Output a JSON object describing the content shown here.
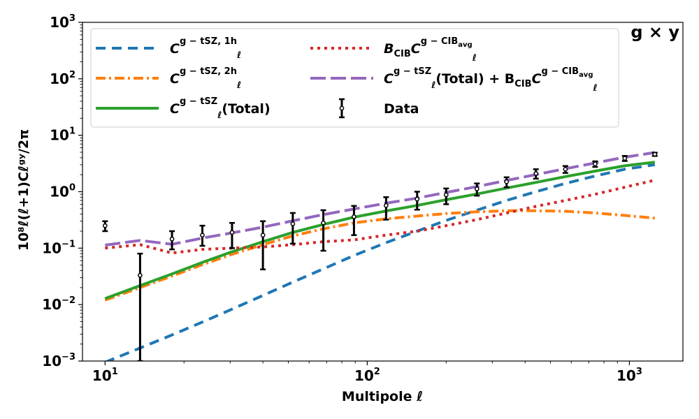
{
  "chart_data": {
    "type": "line",
    "xscale": "log",
    "yscale": "log",
    "xlim": [
      8.2,
      1600
    ],
    "ylim": [
      0.001,
      1000
    ],
    "xlabel": "Multipole ℓ",
    "ylabel": "10⁸ℓ(ℓ+1)Cℓᵍʸ/2π",
    "annotation": "g × y",
    "x_ticks": [
      {
        "value": 10,
        "base": "10",
        "exp": "1"
      },
      {
        "value": 100,
        "base": "10",
        "exp": "2"
      },
      {
        "value": 1000,
        "base": "10",
        "exp": "3"
      }
    ],
    "y_ticks": [
      {
        "value": 0.001,
        "base": "10",
        "exp": "−3"
      },
      {
        "value": 0.01,
        "base": "10",
        "exp": "−2"
      },
      {
        "value": 0.1,
        "base": "10",
        "exp": "−1"
      },
      {
        "value": 1,
        "base": "10",
        "exp": "0"
      },
      {
        "value": 10,
        "base": "10",
        "exp": "1"
      },
      {
        "value": 100,
        "base": "10",
        "exp": "2"
      },
      {
        "value": 1000,
        "base": "10",
        "exp": "3"
      }
    ],
    "x": [
      10,
      13.6,
      18,
      23.5,
      30.5,
      40,
      52,
      68,
      89,
      118,
      155,
      200,
      262,
      340,
      440,
      570,
      740,
      960,
      1250
    ],
    "series": [
      {
        "name": "Cℓ^{g−tSZ, 1h}",
        "color": "#1f77b4",
        "dash": "14,9",
        "width": 4,
        "values": [
          0.00095,
          0.0017,
          0.0029,
          0.0049,
          0.0083,
          0.0145,
          0.025,
          0.043,
          0.074,
          0.125,
          0.2,
          0.31,
          0.47,
          0.7,
          1.0,
          1.4,
          1.9,
          2.5,
          3.0
        ]
      },
      {
        "name": "Cℓ^{g−tSZ, 2h}",
        "color": "#ff7f0e",
        "dash": "14,5,3,5",
        "width": 4,
        "values": [
          0.012,
          0.02,
          0.032,
          0.051,
          0.078,
          0.115,
          0.165,
          0.22,
          0.28,
          0.33,
          0.37,
          0.41,
          0.44,
          0.46,
          0.46,
          0.45,
          0.42,
          0.38,
          0.34
        ]
      },
      {
        "name": "Cℓ^{g−tSZ}(Total)",
        "color": "#2ca02c",
        "dash": "",
        "width": 4,
        "values": [
          0.0128,
          0.0217,
          0.0349,
          0.0559,
          0.0863,
          0.13,
          0.19,
          0.263,
          0.354,
          0.455,
          0.57,
          0.72,
          0.91,
          1.16,
          1.46,
          1.85,
          2.32,
          2.88,
          3.34
        ]
      },
      {
        "name": "B_CIB Cℓ^{g−CIB_avg}",
        "color": "#d62728",
        "dash": "4,6",
        "width": 4,
        "values": [
          0.1,
          0.115,
          0.082,
          0.095,
          0.1,
          0.105,
          0.115,
          0.13,
          0.14,
          0.17,
          0.2,
          0.25,
          0.32,
          0.42,
          0.55,
          0.7,
          0.9,
          1.2,
          1.6
        ]
      },
      {
        "name": "Cℓ^{g−tSZ}(Total) + B_CIB Cℓ^{g−CIB_avg}",
        "color": "#9467bd",
        "dash": "22,7",
        "width": 4,
        "values": [
          0.113,
          0.137,
          0.117,
          0.151,
          0.186,
          0.235,
          0.305,
          0.393,
          0.494,
          0.625,
          0.77,
          0.97,
          1.23,
          1.58,
          2.01,
          2.55,
          3.22,
          4.08,
          4.94
        ]
      }
    ],
    "data_points": {
      "name": "Data",
      "color": "#000000",
      "points": [
        {
          "x": 10,
          "y": 0.25,
          "lo": 0.2,
          "hi": 0.3
        },
        {
          "x": 13.6,
          "y": 0.033,
          "lo": 0.001,
          "hi": 0.08
        },
        {
          "x": 18,
          "y": 0.145,
          "lo": 0.095,
          "hi": 0.2
        },
        {
          "x": 23.5,
          "y": 0.17,
          "lo": 0.11,
          "hi": 0.25
        },
        {
          "x": 30.5,
          "y": 0.19,
          "lo": 0.1,
          "hi": 0.28
        },
        {
          "x": 40,
          "y": 0.17,
          "lo": 0.042,
          "hi": 0.3
        },
        {
          "x": 52,
          "y": 0.27,
          "lo": 0.12,
          "hi": 0.42
        },
        {
          "x": 68,
          "y": 0.28,
          "lo": 0.09,
          "hi": 0.47
        },
        {
          "x": 89,
          "y": 0.36,
          "lo": 0.17,
          "hi": 0.56
        },
        {
          "x": 118,
          "y": 0.57,
          "lo": 0.32,
          "hi": 0.8
        },
        {
          "x": 155,
          "y": 0.74,
          "lo": 0.48,
          "hi": 1.0
        },
        {
          "x": 200,
          "y": 0.88,
          "lo": 0.6,
          "hi": 1.14
        },
        {
          "x": 262,
          "y": 1.12,
          "lo": 0.85,
          "hi": 1.4
        },
        {
          "x": 340,
          "y": 1.5,
          "lo": 1.2,
          "hi": 1.8
        },
        {
          "x": 440,
          "y": 2.1,
          "lo": 1.7,
          "hi": 2.5
        },
        {
          "x": 570,
          "y": 2.5,
          "lo": 2.15,
          "hi": 2.85
        },
        {
          "x": 740,
          "y": 3.1,
          "lo": 2.75,
          "hi": 3.45
        },
        {
          "x": 960,
          "y": 3.9,
          "lo": 3.5,
          "hi": 4.3
        },
        {
          "x": 1250,
          "y": 4.6,
          "lo": 4.3,
          "hi": 4.9
        }
      ]
    },
    "legend": {
      "placement": "top-left",
      "entries": [
        {
          "series": 0,
          "base": "C",
          "sub": "ℓ",
          "sup": "g − tSZ, 1h",
          "tail": ""
        },
        {
          "series": 3,
          "base": "B",
          "bsub": "CIB",
          "base2": "C",
          "sub": "ℓ",
          "sup": "g − CIB",
          "supsub": "avg",
          "tail": ""
        },
        {
          "series": 1,
          "base": "C",
          "sub": "ℓ",
          "sup": "g − tSZ, 2h",
          "tail": ""
        },
        {
          "series": 4,
          "base": "C",
          "sub": "ℓ",
          "sup": "g − tSZ",
          "tail": "(Total) + B",
          "tailsub": "CIB",
          "base2": "C",
          "sub2": "ℓ",
          "sup2": "g − CIB",
          "supsub2": "avg"
        },
        {
          "series": 2,
          "base": "C",
          "sub": "ℓ",
          "sup": "g − tSZ",
          "tail": "(Total)"
        },
        {
          "series": -1,
          "label": "Data"
        }
      ]
    }
  }
}
